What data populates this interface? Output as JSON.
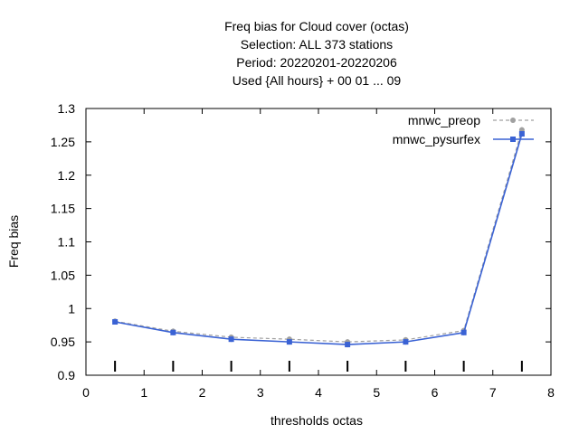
{
  "chart_data": {
    "type": "line",
    "title_lines": [
      "Freq bias  for Cloud cover (octas)",
      "Selection: ALL    373 stations",
      "Period: 20220201-20220206",
      "Used {All hours} + 00 01 ... 09"
    ],
    "xlabel": "thresholds octas",
    "ylabel": "Freq bias",
    "xlim": [
      0,
      8
    ],
    "ylim": [
      0.9,
      1.3
    ],
    "xticks": [
      "0",
      "1",
      "2",
      "3",
      "4",
      "5",
      "6",
      "7",
      "8"
    ],
    "yticks": [
      "0.9",
      "0.95",
      "1",
      "1.05",
      "1.1",
      "1.15",
      "1.2",
      "1.25",
      "1.3"
    ],
    "legend_position": "top-right",
    "x": [
      0.5,
      1.5,
      2.5,
      3.5,
      4.5,
      5.5,
      6.5,
      7.5
    ],
    "series": [
      {
        "name": "mnwc_preop",
        "color": "#a0a0a0",
        "style": "dashed",
        "values": [
          0.981,
          0.966,
          0.957,
          0.954,
          0.95,
          0.953,
          0.967,
          1.268
        ]
      },
      {
        "name": "mnwc_pysurfex",
        "color": "#3a62d4",
        "style": "solid",
        "values": [
          0.98,
          0.964,
          0.954,
          0.95,
          0.946,
          0.95,
          0.964,
          1.262
        ]
      }
    ]
  }
}
